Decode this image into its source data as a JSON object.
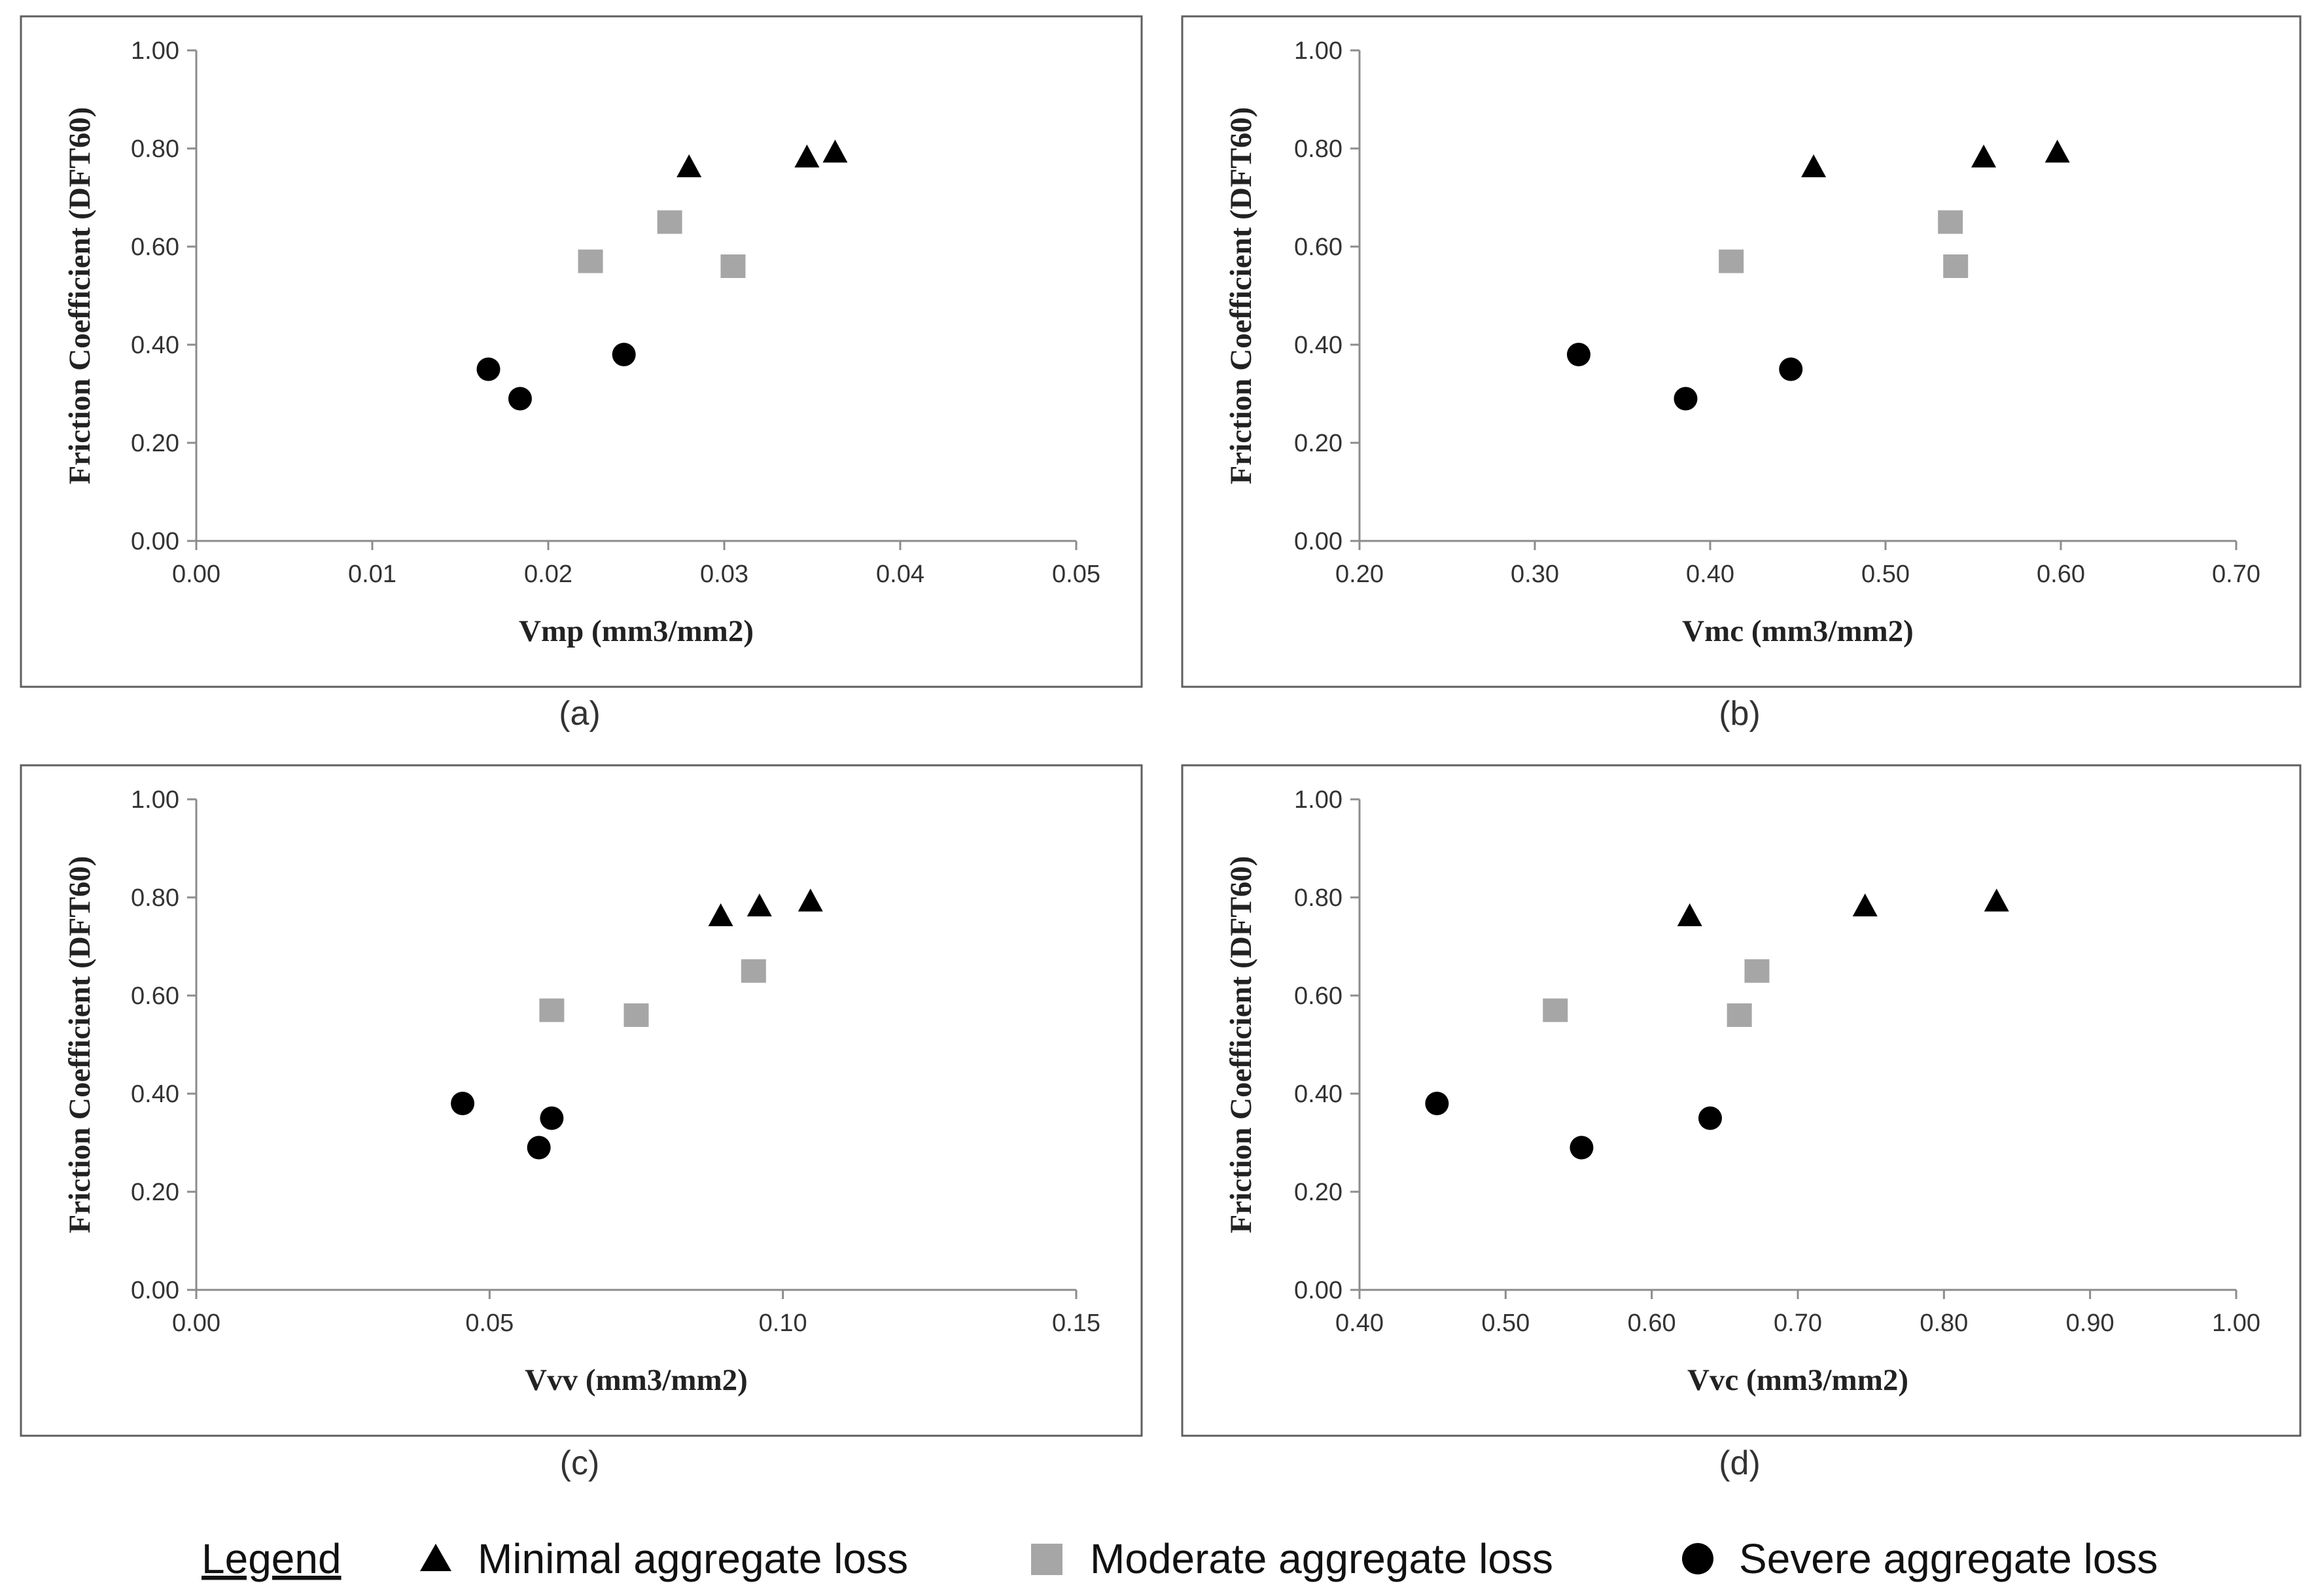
{
  "y_axis_label": "Friction Coefficient  (DFT60)",
  "panel_captions": [
    "(a)",
    "(b)",
    "(c)",
    "(d)"
  ],
  "legend": {
    "title": "Legend",
    "items": [
      {
        "label": "Minimal aggregate loss",
        "marker": "triangle",
        "color": "#000000"
      },
      {
        "label": "Moderate aggregate loss",
        "marker": "square",
        "color": "#a6a6a6"
      },
      {
        "label": "Severe aggregate loss",
        "marker": "circle",
        "color": "#000000"
      }
    ]
  },
  "chart_data": [
    {
      "type": "scatter",
      "xlabel": "Vmp (mm3/mm2)",
      "ylabel": "Friction Coefficient  (DFT60)",
      "xlim": [
        0.0,
        0.05
      ],
      "ylim": [
        0.0,
        1.0
      ],
      "xticks": [
        "0.00",
        "0.01",
        "0.02",
        "0.03",
        "0.04",
        "0.05"
      ],
      "yticks": [
        "0.00",
        "0.20",
        "0.40",
        "0.60",
        "0.80",
        "1.00"
      ],
      "series": [
        {
          "name": "Minimal aggregate loss",
          "marker": "triangle",
          "x": [
            0.028,
            0.0347,
            0.0363
          ],
          "y": [
            0.76,
            0.78,
            0.79
          ]
        },
        {
          "name": "Moderate aggregate loss",
          "marker": "square",
          "x": [
            0.0224,
            0.0269,
            0.0305
          ],
          "y": [
            0.57,
            0.65,
            0.56
          ]
        },
        {
          "name": "Severe aggregate loss",
          "marker": "circle",
          "x": [
            0.0166,
            0.0184,
            0.0243
          ],
          "y": [
            0.35,
            0.29,
            0.38
          ]
        }
      ]
    },
    {
      "type": "scatter",
      "xlabel": "Vmc (mm3/mm2)",
      "ylabel": "Friction Coefficient  (DFT60)",
      "xlim": [
        0.2,
        0.7
      ],
      "ylim": [
        0.0,
        1.0
      ],
      "xticks": [
        "0.20",
        "0.30",
        "0.40",
        "0.50",
        "0.60",
        "0.70"
      ],
      "yticks": [
        "0.00",
        "0.20",
        "0.40",
        "0.60",
        "0.80",
        "1.00"
      ],
      "series": [
        {
          "name": "Minimal aggregate loss",
          "marker": "triangle",
          "x": [
            0.459,
            0.556,
            0.598
          ],
          "y": [
            0.76,
            0.78,
            0.79
          ]
        },
        {
          "name": "Moderate aggregate loss",
          "marker": "square",
          "x": [
            0.412,
            0.537,
            0.54
          ],
          "y": [
            0.57,
            0.65,
            0.56
          ]
        },
        {
          "name": "Severe aggregate loss",
          "marker": "circle",
          "x": [
            0.325,
            0.386,
            0.446
          ],
          "y": [
            0.38,
            0.29,
            0.35
          ]
        }
      ]
    },
    {
      "type": "scatter",
      "xlabel": "Vvv (mm3/mm2)",
      "ylabel": "Friction Coefficient  (DFT60)",
      "xlim": [
        0.0,
        0.15
      ],
      "ylim": [
        0.0,
        1.0
      ],
      "xticks": [
        "0.00",
        "0.05",
        "0.10",
        "0.15"
      ],
      "yticks": [
        "0.00",
        "0.20",
        "0.40",
        "0.60",
        "0.80",
        "1.00"
      ],
      "series": [
        {
          "name": "Minimal aggregate loss",
          "marker": "triangle",
          "x": [
            0.0894,
            0.096,
            0.1047
          ],
          "y": [
            0.76,
            0.78,
            0.79
          ]
        },
        {
          "name": "Moderate aggregate loss",
          "marker": "square",
          "x": [
            0.0606,
            0.075,
            0.095
          ],
          "y": [
            0.57,
            0.56,
            0.65
          ]
        },
        {
          "name": "Severe aggregate loss",
          "marker": "circle",
          "x": [
            0.0454,
            0.0584,
            0.0606
          ],
          "y": [
            0.38,
            0.29,
            0.35
          ]
        }
      ]
    },
    {
      "type": "scatter",
      "xlabel": "Vvc (mm3/mm2)",
      "ylabel": "Friction Coefficient  (DFT60)",
      "xlim": [
        0.4,
        1.0
      ],
      "ylim": [
        0.0,
        1.0
      ],
      "xticks": [
        "0.40",
        "0.50",
        "0.60",
        "0.70",
        "0.80",
        "0.90",
        "1.00"
      ],
      "yticks": [
        "0.00",
        "0.20",
        "0.40",
        "0.60",
        "0.80",
        "1.00"
      ],
      "series": [
        {
          "name": "Minimal aggregate loss",
          "marker": "triangle",
          "x": [
            0.626,
            0.746,
            0.836
          ],
          "y": [
            0.76,
            0.78,
            0.79
          ]
        },
        {
          "name": "Moderate aggregate loss",
          "marker": "square",
          "x": [
            0.534,
            0.66,
            0.672
          ],
          "y": [
            0.57,
            0.56,
            0.65
          ]
        },
        {
          "name": "Severe aggregate loss",
          "marker": "circle",
          "x": [
            0.453,
            0.552,
            0.64
          ],
          "y": [
            0.38,
            0.29,
            0.35
          ]
        }
      ]
    }
  ]
}
